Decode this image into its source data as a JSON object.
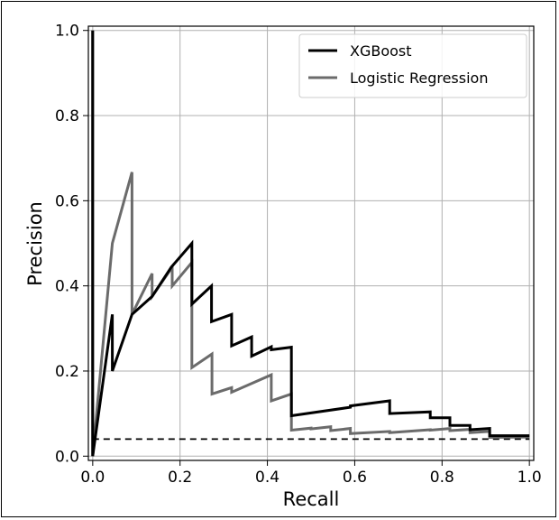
{
  "chart_data": {
    "type": "line",
    "title": "",
    "xlabel": "Recall",
    "ylabel": "Precision",
    "xlim": [
      -0.01,
      1.01
    ],
    "ylim": [
      -0.01,
      1.01
    ],
    "xticks": [
      0.0,
      0.2,
      0.4,
      0.6,
      0.8,
      1.0
    ],
    "yticks": [
      0.0,
      0.2,
      0.4,
      0.6,
      0.8,
      1.0
    ],
    "tick_labels": [
      "0.0",
      "0.2",
      "0.4",
      "0.6",
      "0.8",
      "1.0"
    ],
    "grid": true,
    "legend_position": "top-right",
    "series": [
      {
        "name": "XGBoost",
        "color": "#000000",
        "style": "solid",
        "x": [
          0.0,
          0.0,
          0.045,
          0.045,
          0.09,
          0.136,
          0.18,
          0.227,
          0.227,
          0.272,
          0.272,
          0.318,
          0.318,
          0.364,
          0.364,
          0.409,
          0.409,
          0.455,
          0.455,
          0.59,
          0.59,
          0.68,
          0.68,
          0.773,
          0.773,
          0.818,
          0.818,
          0.864,
          0.864,
          0.909,
          0.909,
          1.0
        ],
        "y": [
          1.0,
          0.0,
          0.333,
          0.2,
          0.333,
          0.375,
          0.444,
          0.5,
          0.357,
          0.4,
          0.316,
          0.333,
          0.259,
          0.28,
          0.235,
          0.257,
          0.25,
          0.256,
          0.095,
          0.115,
          0.118,
          0.13,
          0.1,
          0.104,
          0.09,
          0.09,
          0.072,
          0.072,
          0.062,
          0.065,
          0.048,
          0.048
        ]
      },
      {
        "name": "Logistic Regression",
        "color": "#6b6b6b",
        "style": "solid",
        "x": [
          0.0,
          0.0,
          0.045,
          0.09,
          0.09,
          0.136,
          0.136,
          0.182,
          0.182,
          0.227,
          0.227,
          0.273,
          0.273,
          0.318,
          0.318,
          0.409,
          0.409,
          0.455,
          0.455,
          0.5,
          0.5,
          0.545,
          0.545,
          0.59,
          0.59,
          0.68,
          0.68,
          0.773,
          0.773,
          0.818,
          0.818,
          0.864,
          0.864,
          0.909,
          0.909,
          1.0
        ],
        "y": [
          1.0,
          0.0,
          0.5,
          0.667,
          0.333,
          0.429,
          0.375,
          0.444,
          0.4,
          0.455,
          0.208,
          0.24,
          0.146,
          0.161,
          0.15,
          0.191,
          0.13,
          0.146,
          0.061,
          0.066,
          0.064,
          0.069,
          0.06,
          0.065,
          0.053,
          0.058,
          0.055,
          0.062,
          0.061,
          0.065,
          0.06,
          0.063,
          0.055,
          0.058,
          0.044,
          0.045
        ]
      },
      {
        "name": "",
        "color": "#000000",
        "style": "dashed",
        "x": [
          0.0,
          1.0
        ],
        "y": [
          0.04,
          0.04
        ]
      }
    ]
  }
}
